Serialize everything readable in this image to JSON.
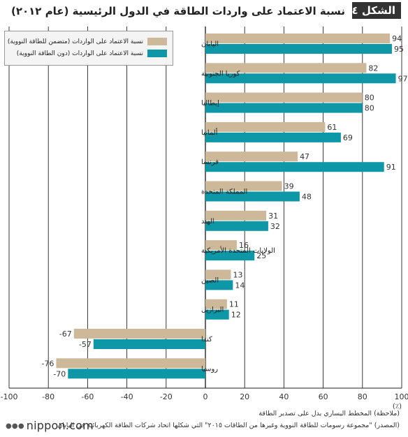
{
  "header": {
    "figure_label": "الشكل ٤",
    "title": "نسبة الاعتماد على واردات الطاقة في الدول الرئيسية (عام ٢٠١٢)"
  },
  "chart_data": {
    "type": "bar",
    "orientation": "horizontal",
    "categories": [
      "اليابان",
      "كوريا الجنوبية",
      "إيطاليا",
      "ألمانيا",
      "فرنسا",
      "المملكة المتحدة",
      "الهند",
      "الولايات المتحدة الأمريكية",
      "الصين",
      "البرازيل",
      "كندا",
      "روسيا"
    ],
    "series": [
      {
        "name": "نسبة الاعتماد على الواردات (متضمن للطاقة النووية)",
        "color": "#cdb99a",
        "values": [
          94,
          82,
          80,
          61,
          47,
          39,
          31,
          16,
          13,
          11,
          -67,
          -76
        ]
      },
      {
        "name": "نسبة الاعتماد على الواردات (دون الطاقة النووية)",
        "color": "#0e97a6",
        "values": [
          95,
          97,
          80,
          69,
          91,
          48,
          32,
          25,
          14,
          12,
          -57,
          -70
        ]
      }
    ],
    "x_ticks": [
      "-100",
      "-80",
      "-60",
      "-40",
      "-20",
      "0",
      "20",
      "40",
      "60",
      "80",
      "100"
    ],
    "xlim": [
      -100,
      100
    ],
    "unit_label": "(٪)",
    "grid": true,
    "legend_position": "top-left"
  },
  "notes": {
    "remark": "(ملاحظة) المخطط اليساري يدل على تصدير الطاقة",
    "source": "(المصدر) \"مجموعة رسومات للطاقة النووية وغيرها من الطاقات ٢٠١٥\" التي شكلها اتحاد شركات الطاقة الكهربائية في اليابان"
  },
  "brand": {
    "name": "nippon.com",
    "dots": "●●●"
  }
}
